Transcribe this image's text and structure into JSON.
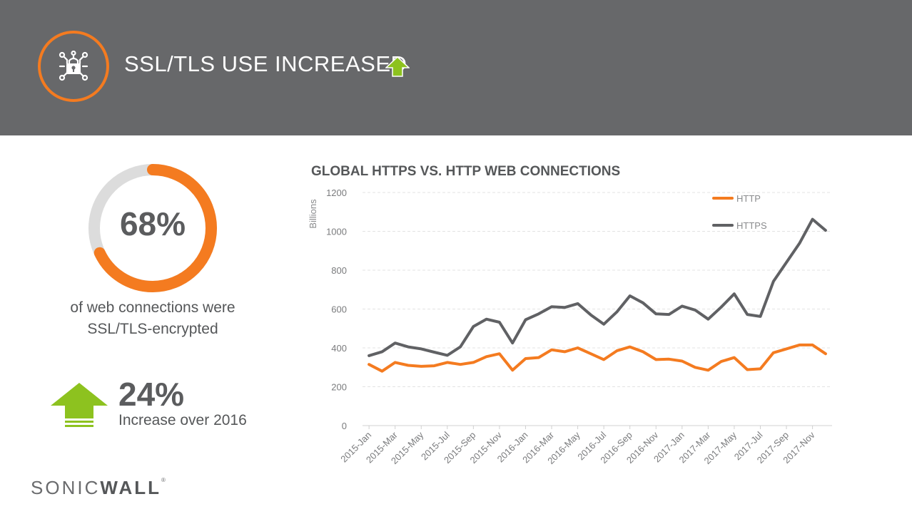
{
  "header": {
    "title": "SSL/TLS USE INCREASED",
    "icon": "lock-circuit-icon",
    "trend_icon": "up-arrow-icon",
    "background": "#67686a",
    "accent": "#f47b20"
  },
  "stat": {
    "percent": "68%",
    "percent_value": 0.68,
    "caption_line1": "of web connections were",
    "caption_line2": "SSL/TLS-encrypted",
    "increase": "24%",
    "increase_label": "Increase over 2016",
    "arrow_color": "#8dc21f"
  },
  "brand": {
    "part1": "SONIC",
    "part2": "WALL",
    "mark": "®"
  },
  "chart_data": {
    "type": "line",
    "title": "GLOBAL HTTPS VS. HTTP WEB CONNECTIONS",
    "xlabel": "",
    "ylabel": "Billions",
    "ylim": [
      0,
      1200
    ],
    "yticks": [
      0,
      200,
      400,
      600,
      800,
      1000,
      1200
    ],
    "grid": "horizontal dashed",
    "legend_position": "top-right",
    "x": [
      "2015-Jan",
      "2015-Feb",
      "2015-Mar",
      "2015-Apr",
      "2015-May",
      "2015-Jun",
      "2015-Jul",
      "2015-Aug",
      "2015-Sep",
      "2015-Oct",
      "2015-Nov",
      "2015-Dec",
      "2016-Jan",
      "2016-Feb",
      "2016-Mar",
      "2016-Apr",
      "2016-May",
      "2016-Jun",
      "2016-Jul",
      "2016-Aug",
      "2016-Sep",
      "2016-Oct",
      "2016-Nov",
      "2016-Dec",
      "2017-Jan",
      "2017-Feb",
      "2017-Mar",
      "2017-Apr",
      "2017-May",
      "2017-Jun",
      "2017-Jul",
      "2017-Aug",
      "2017-Sep",
      "2017-Oct",
      "2017-Nov",
      "2017-Dec"
    ],
    "tick_labels": [
      "2015-Jan",
      "2015-Mar",
      "2015-May",
      "2015-Jul",
      "2015-Sep",
      "2015-Nov",
      "2016-Jan",
      "2016-Mar",
      "2016-May",
      "2016-Jul",
      "2016-Sep",
      "2016-Nov",
      "2017-Jan",
      "2017-Mar",
      "2017-May",
      "2017-Jul",
      "2017-Sep",
      "2017-Nov"
    ],
    "series": [
      {
        "name": "HTTP",
        "color": "#f47b20",
        "values": [
          315,
          280,
          325,
          310,
          305,
          308,
          325,
          315,
          325,
          355,
          370,
          285,
          345,
          350,
          390,
          380,
          400,
          370,
          340,
          385,
          405,
          380,
          340,
          342,
          332,
          300,
          285,
          330,
          350,
          288,
          292,
          375,
          395,
          415,
          415,
          370
        ]
      },
      {
        "name": "HTTPS",
        "color": "#606164",
        "values": [
          360,
          380,
          425,
          405,
          395,
          378,
          362,
          405,
          510,
          548,
          532,
          425,
          545,
          575,
          612,
          608,
          628,
          570,
          522,
          585,
          668,
          632,
          575,
          572,
          615,
          595,
          548,
          610,
          678,
          572,
          562,
          742,
          840,
          938,
          1062,
          1005
        ]
      }
    ]
  }
}
